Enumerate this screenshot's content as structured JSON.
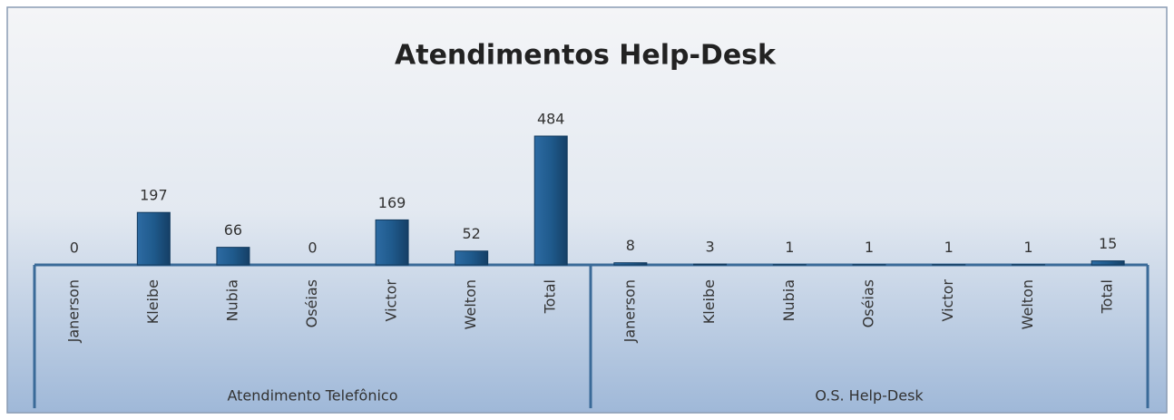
{
  "chart_data": {
    "type": "bar",
    "title": "Atendimentos Help-Desk",
    "color": "#1f5a8c",
    "groups": [
      {
        "name": "Atendimento Telefônico",
        "categories": [
          "Janerson",
          "Kleibe",
          "Nubia",
          "Oséias",
          "Victor",
          "Welton",
          "Total"
        ],
        "values": [
          0,
          197,
          66,
          0,
          169,
          52,
          484
        ]
      },
      {
        "name": "O.S. Help-Desk",
        "categories": [
          "Janerson",
          "Kleibe",
          "Nubia",
          "Oséias",
          "Victor",
          "Welton",
          "Total"
        ],
        "values": [
          8,
          3,
          1,
          1,
          1,
          1,
          15
        ]
      }
    ]
  }
}
